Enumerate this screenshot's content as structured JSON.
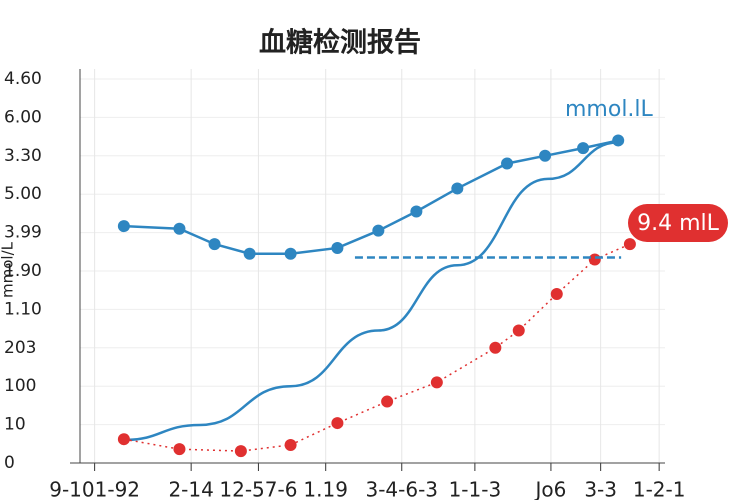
{
  "chart_data": {
    "type": "line",
    "title": "血糖检测报告",
    "y_label": "mmol/L",
    "annotations": [
      {
        "text": "mmol.lL",
        "color": "#2e86c1"
      },
      {
        "text": "9.4 mlL",
        "color": "#e03030"
      }
    ],
    "xlim": [
      0,
      20
    ],
    "xticks": [
      {
        "value": 0.5,
        "label": "9-101-92"
      },
      {
        "value": 3.8,
        "label": "2-14"
      },
      {
        "value": 6.1,
        "label": "12-57-6"
      },
      {
        "value": 8.4,
        "label": "1.19"
      },
      {
        "value": 11.0,
        "label": "3-4-6-3"
      },
      {
        "value": 13.5,
        "label": "1-1-3"
      },
      {
        "value": 16.1,
        "label": "Jo6"
      },
      {
        "value": 17.8,
        "label": "3-3"
      },
      {
        "value": 19.8,
        "label": "1-2-1"
      }
    ],
    "ylim": [
      0,
      10
    ],
    "yticks": [
      0,
      {
        "value": 1,
        "label": "10"
      },
      {
        "value": 2,
        "label": "100"
      },
      {
        "value": 3,
        "label": "203"
      },
      {
        "value": 4,
        "label": "1.10"
      },
      {
        "value": 5,
        "label": "1.90"
      },
      {
        "value": 6,
        "label": "3.99"
      },
      {
        "value": 7,
        "label": "5.00"
      },
      {
        "value": 8,
        "label": "3.30"
      },
      {
        "value": 9,
        "label": "6.00"
      },
      {
        "value": 10,
        "label": "4.60"
      }
    ],
    "grid": true,
    "series": [
      {
        "color": "#2e86c1",
        "markers": true,
        "line_style": "solid",
        "x": [
          1.5,
          3.4,
          4.6,
          5.8,
          7.2,
          8.8,
          10.2,
          11.5,
          12.9,
          14.6,
          15.9,
          17.2,
          18.4
        ],
        "values": [
          6.17,
          6.1,
          5.7,
          5.45,
          5.45,
          5.6,
          6.05,
          6.55,
          7.15,
          7.8,
          8.0,
          8.2,
          8.4
        ]
      },
      {
        "color": "#2e86c1",
        "markers": false,
        "line_style": "solid",
        "x": [
          1.5,
          4.1,
          7.2,
          10.2,
          12.9,
          16.0,
          18.4
        ],
        "values": [
          0.6,
          0.99,
          2.0,
          3.45,
          5.15,
          7.4,
          8.35
        ]
      },
      {
        "color": "#e03030",
        "markers": true,
        "line_style": "dotted",
        "x": [
          1.5,
          3.4,
          5.5,
          7.2,
          8.8,
          10.5,
          12.2,
          14.2,
          15.0,
          16.3,
          17.6,
          18.8
        ],
        "values": [
          0.62,
          0.36,
          0.31,
          0.47,
          1.04,
          1.6,
          2.1,
          3.0,
          3.45,
          4.4,
          5.3,
          5.7
        ]
      },
      {
        "color": "#2e86c1",
        "markers": false,
        "line_style": "dashed",
        "x": [
          9.4,
          18.5
        ],
        "values": [
          5.35,
          5.35
        ]
      }
    ]
  }
}
